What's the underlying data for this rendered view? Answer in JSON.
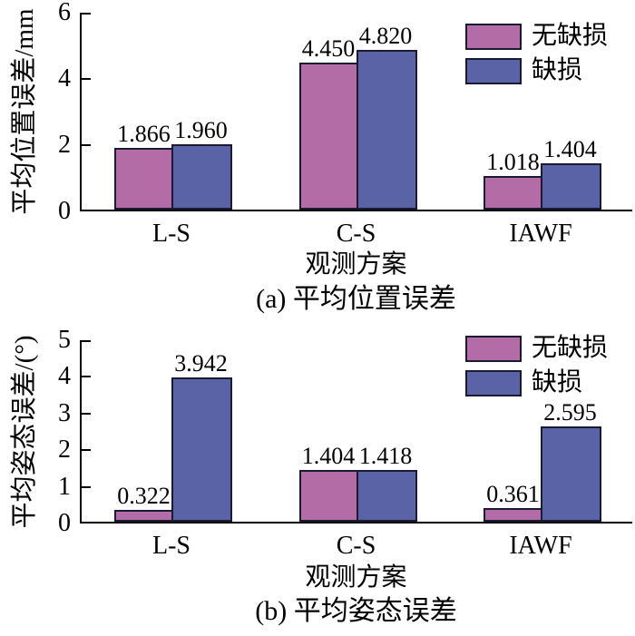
{
  "colors": {
    "series_no_defect": "#b46ca6",
    "series_defect": "#5a63a5",
    "bar_border": "#1a1a33",
    "axis": "#000000",
    "background": "#ffffff"
  },
  "chart_data": [
    {
      "type": "bar",
      "panel": "a",
      "caption": "(a) 平均位置误差",
      "ylabel": "平均位置误差/mm",
      "xlabel": "观测方案",
      "categories": [
        "L-S",
        "C-S",
        "IAWF"
      ],
      "ylim": [
        0,
        6
      ],
      "yticks": [
        0,
        2,
        4,
        6
      ],
      "legend_position": "top-right-inside",
      "grid": false,
      "series": [
        {
          "name": "无缺损",
          "color": "#b46ca6",
          "values": [
            1.866,
            4.45,
            1.018
          ],
          "labels": [
            "1.866",
            "4.450",
            "1.018"
          ]
        },
        {
          "name": "缺损",
          "color": "#5a63a5",
          "values": [
            1.96,
            4.82,
            1.404
          ],
          "labels": [
            "1.960",
            "4.820",
            "1.404"
          ]
        }
      ]
    },
    {
      "type": "bar",
      "panel": "b",
      "caption": "(b) 平均姿态误差",
      "ylabel": "平均姿态误差/(°)",
      "xlabel": "观测方案",
      "categories": [
        "L-S",
        "C-S",
        "IAWF"
      ],
      "ylim": [
        0,
        5
      ],
      "yticks": [
        0,
        1,
        2,
        3,
        4,
        5
      ],
      "legend_position": "top-right-inside",
      "grid": false,
      "series": [
        {
          "name": "无缺损",
          "color": "#b46ca6",
          "values": [
            0.322,
            1.404,
            0.361
          ],
          "labels": [
            "0.322",
            "1.404",
            "0.361"
          ]
        },
        {
          "name": "缺损",
          "color": "#5a63a5",
          "values": [
            3.942,
            1.418,
            2.595
          ],
          "labels": [
            "3.942",
            "1.418",
            "2.595"
          ]
        }
      ]
    }
  ]
}
